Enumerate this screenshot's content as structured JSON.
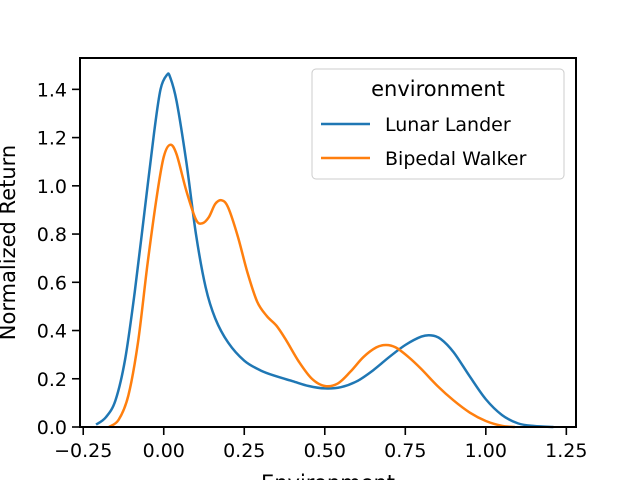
{
  "chart_data": {
    "type": "line",
    "title": "",
    "xlabel": "Environment",
    "ylabel": "Normalized Return",
    "xlim": [
      -0.26,
      1.28
    ],
    "ylim": [
      0,
      1.53
    ],
    "x_ticks": [
      -0.25,
      0.0,
      0.25,
      0.5,
      0.75,
      1.0,
      1.25
    ],
    "x_tick_labels": [
      "−0.25",
      "0.00",
      "0.25",
      "0.50",
      "0.75",
      "1.00",
      "1.25"
    ],
    "y_ticks": [
      0.0,
      0.2,
      0.4,
      0.6,
      0.8,
      1.0,
      1.2,
      1.4
    ],
    "y_tick_labels": [
      "0.0",
      "0.2",
      "0.4",
      "0.6",
      "0.8",
      "1.0",
      "1.2",
      "1.4"
    ],
    "grid": false,
    "legend": {
      "title": "environment",
      "placement": "top-right"
    },
    "series": [
      {
        "name": "Lunar Lander",
        "color": "#1f77b4",
        "points": [
          [
            -0.21,
            0.01
          ],
          [
            -0.18,
            0.04
          ],
          [
            -0.15,
            0.11
          ],
          [
            -0.12,
            0.28
          ],
          [
            -0.09,
            0.56
          ],
          [
            -0.06,
            0.89
          ],
          [
            -0.03,
            1.22
          ],
          [
            -0.01,
            1.4
          ],
          [
            0.01,
            1.46
          ],
          [
            0.02,
            1.45
          ],
          [
            0.04,
            1.35
          ],
          [
            0.07,
            1.1
          ],
          [
            0.1,
            0.8
          ],
          [
            0.13,
            0.58
          ],
          [
            0.16,
            0.45
          ],
          [
            0.2,
            0.35
          ],
          [
            0.25,
            0.275
          ],
          [
            0.3,
            0.235
          ],
          [
            0.35,
            0.21
          ],
          [
            0.4,
            0.19
          ],
          [
            0.45,
            0.17
          ],
          [
            0.5,
            0.16
          ],
          [
            0.55,
            0.165
          ],
          [
            0.6,
            0.19
          ],
          [
            0.65,
            0.235
          ],
          [
            0.7,
            0.29
          ],
          [
            0.75,
            0.34
          ],
          [
            0.8,
            0.375
          ],
          [
            0.83,
            0.38
          ],
          [
            0.86,
            0.365
          ],
          [
            0.9,
            0.31
          ],
          [
            0.95,
            0.21
          ],
          [
            1.0,
            0.115
          ],
          [
            1.05,
            0.05
          ],
          [
            1.1,
            0.015
          ],
          [
            1.15,
            0.004
          ],
          [
            1.21,
            0.0
          ]
        ]
      },
      {
        "name": "Bipedal Walker",
        "color": "#ff7f0e",
        "points": [
          [
            -0.17,
            0.0
          ],
          [
            -0.14,
            0.03
          ],
          [
            -0.11,
            0.13
          ],
          [
            -0.08,
            0.35
          ],
          [
            -0.05,
            0.68
          ],
          [
            -0.02,
            0.97
          ],
          [
            0.0,
            1.12
          ],
          [
            0.02,
            1.17
          ],
          [
            0.04,
            1.13
          ],
          [
            0.07,
            0.98
          ],
          [
            0.1,
            0.86
          ],
          [
            0.12,
            0.845
          ],
          [
            0.14,
            0.87
          ],
          [
            0.16,
            0.925
          ],
          [
            0.18,
            0.94
          ],
          [
            0.2,
            0.91
          ],
          [
            0.23,
            0.79
          ],
          [
            0.26,
            0.64
          ],
          [
            0.29,
            0.52
          ],
          [
            0.32,
            0.46
          ],
          [
            0.35,
            0.42
          ],
          [
            0.38,
            0.36
          ],
          [
            0.42,
            0.27
          ],
          [
            0.46,
            0.2
          ],
          [
            0.5,
            0.17
          ],
          [
            0.54,
            0.18
          ],
          [
            0.58,
            0.23
          ],
          [
            0.62,
            0.29
          ],
          [
            0.66,
            0.33
          ],
          [
            0.69,
            0.34
          ],
          [
            0.72,
            0.33
          ],
          [
            0.76,
            0.29
          ],
          [
            0.8,
            0.24
          ],
          [
            0.85,
            0.17
          ],
          [
            0.9,
            0.11
          ],
          [
            0.95,
            0.06
          ],
          [
            1.0,
            0.025
          ],
          [
            1.05,
            0.005
          ],
          [
            1.09,
            0.0
          ]
        ]
      }
    ]
  }
}
